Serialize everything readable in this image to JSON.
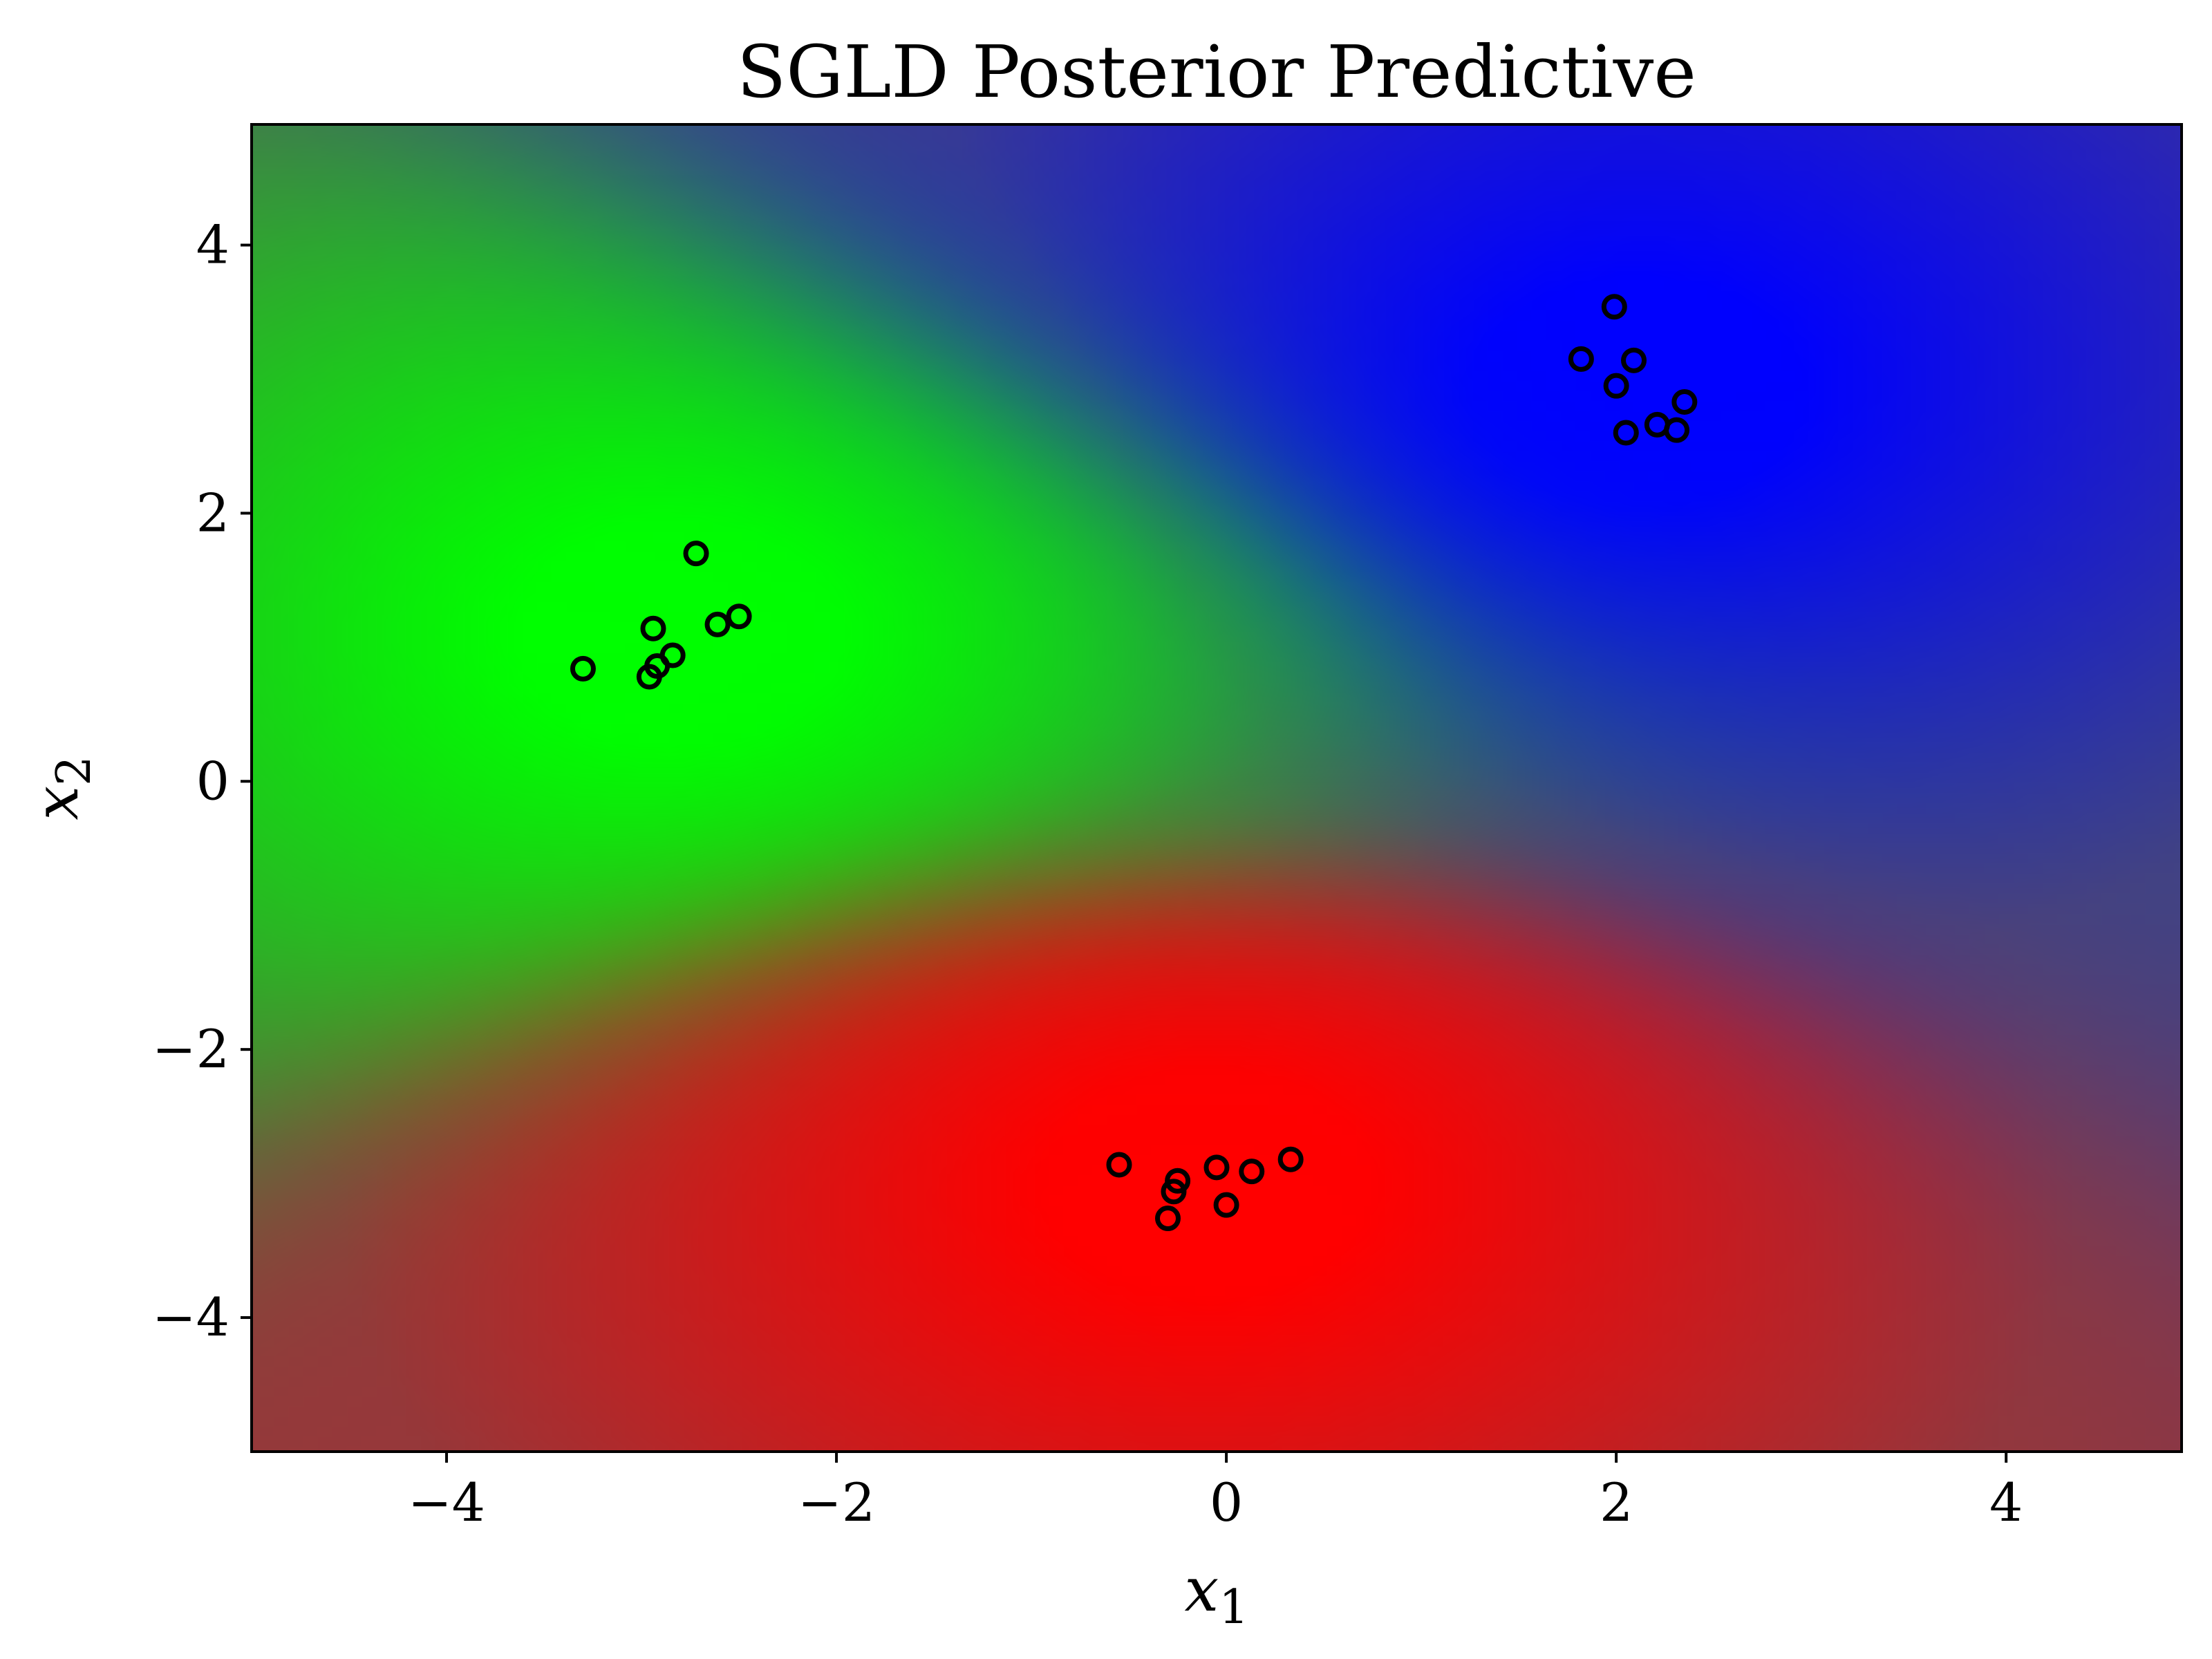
{
  "chart_data": {
    "type": "heatmap",
    "title": "SGLD Posterior Predictive",
    "xlabel": {
      "base": "x",
      "sub": "1"
    },
    "ylabel": {
      "base": "x",
      "sub": "2"
    },
    "xlim": [
      -5,
      4.9
    ],
    "ylim": [
      -5,
      4.9
    ],
    "xticks": [
      -4,
      -2,
      0,
      2,
      4
    ],
    "yticks": [
      -4,
      -2,
      0,
      2,
      4
    ],
    "xtick_labels": [
      "−4",
      "−2",
      "0",
      "2",
      "4"
    ],
    "ytick_labels": [
      "−4",
      "−2",
      "0",
      "2",
      "4"
    ],
    "grid": false,
    "legend": "none",
    "background_description_colors": {
      "green_class": "#00ff00",
      "red_class": "#ff0000",
      "blue_class": "#0000ff"
    },
    "class_centers": [
      {
        "name": "green",
        "x": -2.8,
        "y": 1.1
      },
      {
        "name": "red",
        "x": -0.1,
        "y": -3.0
      },
      {
        "name": "blue",
        "x": 2.1,
        "y": 2.9
      }
    ],
    "marker": {
      "shape": "open-circle",
      "color": "#000000"
    },
    "points": [
      {
        "x": -2.72,
        "y": 1.7
      },
      {
        "x": -2.5,
        "y": 1.23
      },
      {
        "x": -2.61,
        "y": 1.17
      },
      {
        "x": -2.94,
        "y": 1.14
      },
      {
        "x": -2.84,
        "y": 0.94
      },
      {
        "x": -2.92,
        "y": 0.86
      },
      {
        "x": -2.96,
        "y": 0.78
      },
      {
        "x": -3.3,
        "y": 0.84
      },
      {
        "x": 1.99,
        "y": 3.54
      },
      {
        "x": 1.82,
        "y": 3.15
      },
      {
        "x": 2.09,
        "y": 3.14
      },
      {
        "x": 2.0,
        "y": 2.95
      },
      {
        "x": 2.35,
        "y": 2.83
      },
      {
        "x": 2.21,
        "y": 2.66
      },
      {
        "x": 2.31,
        "y": 2.62
      },
      {
        "x": 2.05,
        "y": 2.6
      },
      {
        "x": -0.55,
        "y": -2.86
      },
      {
        "x": -0.25,
        "y": -2.98
      },
      {
        "x": -0.27,
        "y": -3.06
      },
      {
        "x": -0.3,
        "y": -3.26
      },
      {
        "x": -0.05,
        "y": -2.88
      },
      {
        "x": 0.13,
        "y": -2.91
      },
      {
        "x": 0.33,
        "y": -2.82
      },
      {
        "x": 0.0,
        "y": -3.16
      }
    ]
  }
}
